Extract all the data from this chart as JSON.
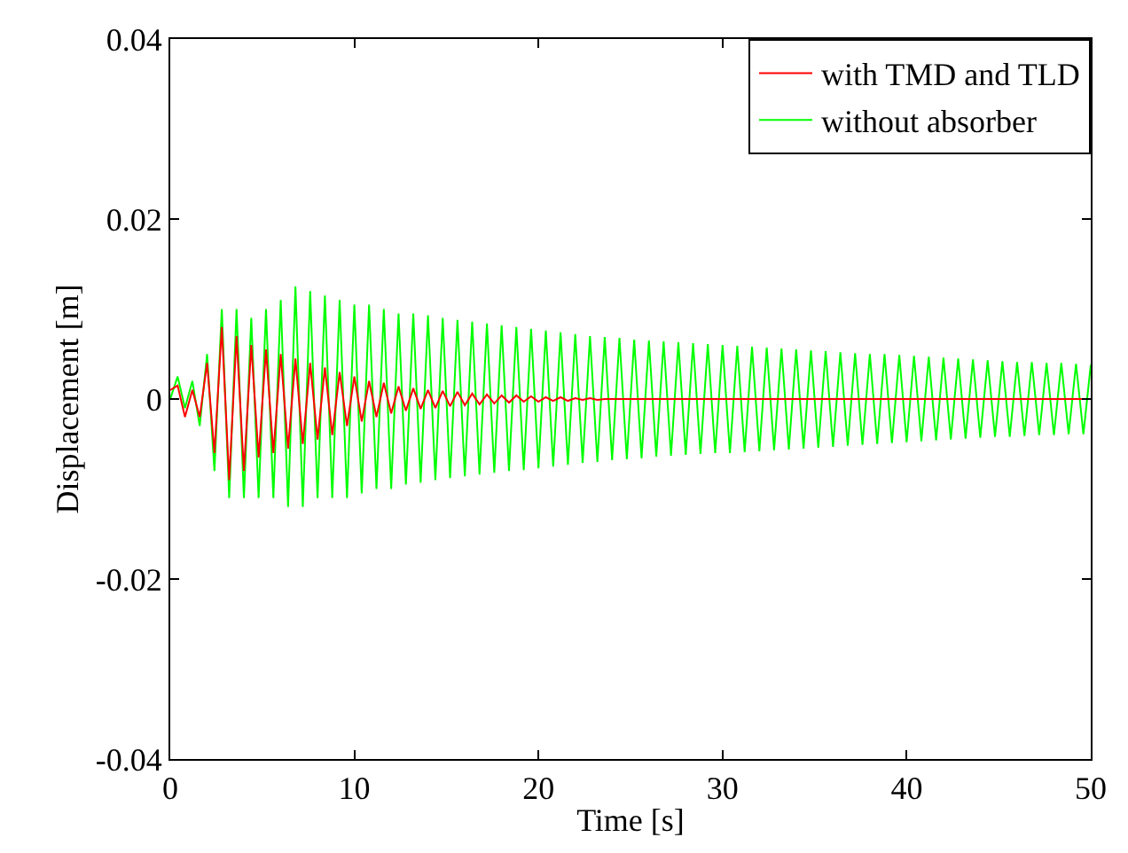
{
  "chart_data": {
    "type": "line",
    "xlabel": "Time [s]",
    "ylabel": "Displacement [m]",
    "xlim": [
      0,
      50
    ],
    "ylim": [
      -0.04,
      0.04
    ],
    "xticks": [
      0,
      10,
      20,
      30,
      40,
      50
    ],
    "yticks": [
      -0.04,
      -0.02,
      0,
      0.02,
      0.04
    ],
    "legend": "top right",
    "marker": "none",
    "line_style": "solid",
    "series": [
      {
        "name": "with TMD and TLD",
        "color": "#ff0000",
        "x": [
          0,
          0.4,
          0.8,
          1.2,
          1.6,
          2.0,
          2.4,
          2.8,
          3.2,
          3.6,
          4.0,
          4.4,
          4.8,
          5.2,
          5.6,
          6.0,
          6.4,
          6.8,
          7.2,
          7.6,
          8.0,
          8.4,
          8.8,
          9.2,
          9.6,
          10.0,
          10.4,
          10.8,
          11.2,
          11.6,
          12.0,
          12.4,
          12.8,
          13.2,
          13.6,
          14.0,
          14.4,
          14.8,
          15.2,
          15.6,
          16.0,
          16.4,
          16.8,
          17.2,
          17.6,
          18.0,
          18.4,
          18.8,
          19.2,
          19.6,
          20.0,
          20.4,
          20.8,
          21.2,
          21.6,
          22.0,
          22.4,
          22.8,
          23.2,
          23.6,
          50
        ],
        "values": [
          0.001,
          0.0015,
          -0.002,
          0.001,
          -0.002,
          0.004,
          -0.006,
          0.008,
          -0.009,
          0.007,
          -0.008,
          0.006,
          -0.0065,
          0.0055,
          -0.006,
          0.005,
          -0.0055,
          0.0045,
          -0.005,
          0.004,
          -0.0045,
          0.0035,
          -0.004,
          0.003,
          -0.003,
          0.0025,
          -0.0025,
          0.002,
          -0.002,
          0.0018,
          -0.0016,
          0.0014,
          -0.0013,
          0.0012,
          -0.0011,
          0.001,
          -0.001,
          0.0009,
          -0.0008,
          0.0008,
          -0.0007,
          0.0006,
          -0.0006,
          0.0005,
          -0.0005,
          0.0004,
          -0.0004,
          0.0004,
          -0.0003,
          0.0003,
          -0.0003,
          0.0002,
          -0.0002,
          0.0002,
          -0.0002,
          0.0001,
          -0.0001,
          0.0001,
          -0.0001,
          0,
          0
        ]
      },
      {
        "name": "without absorber",
        "color": "#00ff00",
        "x": [
          0,
          0.4,
          0.8,
          1.2,
          1.6,
          2.0,
          2.4,
          2.8,
          3.2,
          3.6,
          4.0,
          4.4,
          4.8,
          5.2,
          5.6,
          6.0,
          6.4,
          6.8,
          7.2,
          7.6,
          8.0,
          8.4,
          8.8,
          9.2,
          9.6,
          10.0,
          10.4,
          10.8,
          11.2,
          11.6,
          12.0,
          12.4,
          12.8,
          13.2,
          13.6,
          14.0,
          14.4,
          14.8,
          15.2,
          15.6,
          16.0,
          16.4,
          16.8,
          17.2,
          17.6,
          18.0,
          18.4,
          18.8,
          19.2,
          19.6,
          20.0,
          20.4,
          20.8,
          21.2,
          21.6,
          22.0,
          22.4,
          22.8,
          23.2,
          23.6,
          24.0,
          24.4,
          24.8,
          25.2,
          25.6,
          26.0,
          26.4,
          26.8,
          27.2,
          27.6,
          28.0,
          28.4,
          28.8,
          29.2,
          29.6,
          30.0,
          30.4,
          30.8,
          31.2,
          31.6,
          32.0,
          32.4,
          32.8,
          33.2,
          33.6,
          34.0,
          34.4,
          34.8,
          35.2,
          35.6,
          36.0,
          36.4,
          36.8,
          37.2,
          37.6,
          38.0,
          38.4,
          38.8,
          39.2,
          39.6,
          40.0,
          40.4,
          40.8,
          41.2,
          41.6,
          42.0,
          42.4,
          42.8,
          43.2,
          43.6,
          44.0,
          44.4,
          44.8,
          45.2,
          45.6,
          46.0,
          46.4,
          46.8,
          47.2,
          47.6,
          48.0,
          48.4,
          48.8,
          49.2,
          49.6,
          50.0
        ],
        "values": [
          0,
          0.0025,
          -0.001,
          0.002,
          -0.003,
          0.005,
          -0.008,
          0.01,
          -0.011,
          0.01,
          -0.011,
          0.009,
          -0.011,
          0.01,
          -0.011,
          0.011,
          -0.012,
          0.0125,
          -0.012,
          0.012,
          -0.011,
          0.0115,
          -0.011,
          0.011,
          -0.011,
          0.0105,
          -0.0105,
          0.0105,
          -0.01,
          0.01,
          -0.01,
          0.0095,
          -0.0095,
          0.0095,
          -0.0093,
          0.0093,
          -0.009,
          0.009,
          -0.0088,
          0.0088,
          -0.0086,
          0.0086,
          -0.0084,
          0.0084,
          -0.0082,
          0.0082,
          -0.008,
          0.008,
          -0.0079,
          0.0078,
          -0.0077,
          0.0076,
          -0.0075,
          0.0074,
          -0.0073,
          0.0072,
          -0.0071,
          0.007,
          -0.007,
          0.0069,
          -0.0068,
          0.0068,
          -0.0067,
          0.0066,
          -0.0066,
          0.0065,
          -0.0064,
          0.0064,
          -0.0063,
          0.0063,
          -0.0062,
          0.0062,
          -0.0061,
          0.0061,
          -0.006,
          0.006,
          -0.006,
          0.0059,
          -0.0059,
          0.0058,
          -0.0058,
          0.0057,
          -0.0057,
          0.0056,
          -0.0056,
          0.0055,
          -0.0055,
          0.0054,
          -0.0054,
          0.0053,
          -0.0053,
          0.0052,
          -0.0052,
          0.0051,
          -0.0051,
          0.005,
          -0.005,
          0.005,
          -0.0049,
          0.0049,
          -0.0048,
          0.0048,
          -0.0047,
          0.0047,
          -0.0046,
          0.0046,
          -0.0045,
          0.0045,
          -0.0044,
          0.0044,
          -0.0043,
          0.0043,
          -0.0042,
          0.0042,
          -0.0042,
          0.0041,
          -0.0041,
          0.0041,
          -0.004,
          0.004,
          -0.004,
          0.004,
          -0.0039,
          0.0039,
          -0.0039,
          0.0038
        ]
      }
    ]
  }
}
